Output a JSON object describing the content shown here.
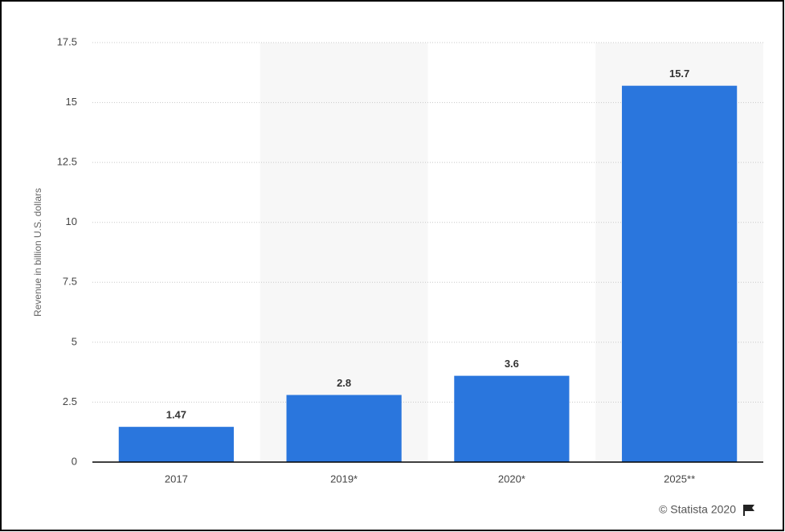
{
  "chart_data": {
    "type": "bar",
    "y_label": "Revenue in billion U.S. dollars",
    "categories": [
      "2017",
      "2019*",
      "2020*",
      "2025**"
    ],
    "values": [
      1.47,
      2.8,
      3.6,
      15.7
    ],
    "color": "#2a76dd",
    "ylim": [
      0,
      17.5
    ],
    "yticks": [
      0,
      2.5,
      5,
      7.5,
      10,
      12.5,
      15,
      17.5
    ],
    "grid": true,
    "credit": "© Statista 2020"
  }
}
